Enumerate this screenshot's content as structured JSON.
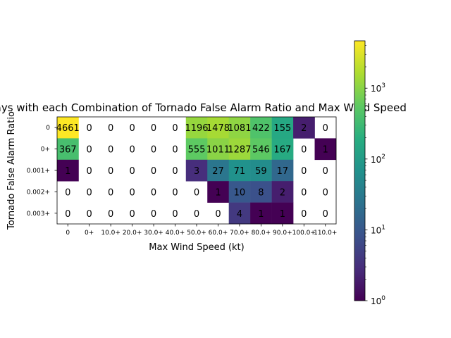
{
  "chart_data": {
    "type": "heatmap",
    "title": "Days with each Combination of Tornado False Alarm Ratio and Max Wind Speed",
    "xlabel": "Max Wind Speed (kt)",
    "ylabel": "Tornado False Alarm Ratio",
    "x_categories": [
      "0",
      "0+",
      "10.0+",
      "20.0+",
      "30.0+",
      "40.0+",
      "50.0+",
      "60.0+",
      "70.0+",
      "80.0+",
      "90.0+",
      "100.0+",
      "110.0+"
    ],
    "y_categories": [
      "0",
      "0+",
      "0.001+",
      "0.002+",
      "0.003+"
    ],
    "values": [
      [
        4661,
        0,
        0,
        0,
        0,
        0,
        1196,
        1478,
        1081,
        422,
        155,
        2,
        0
      ],
      [
        367,
        0,
        0,
        0,
        0,
        0,
        555,
        1011,
        1287,
        546,
        167,
        0,
        1
      ],
      [
        1,
        0,
        0,
        0,
        0,
        0,
        3,
        27,
        71,
        59,
        17,
        0,
        0
      ],
      [
        0,
        0,
        0,
        0,
        0,
        0,
        0,
        1,
        10,
        8,
        2,
        0,
        0
      ],
      [
        0,
        0,
        0,
        0,
        0,
        0,
        0,
        0,
        4,
        1,
        1,
        0,
        0
      ]
    ],
    "color_scale": "log",
    "colormap": "viridis",
    "zero_cells": "blank",
    "colorbar": {
      "range": [
        1,
        4661
      ],
      "ticks": [
        {
          "value": 1,
          "base": "10",
          "exp": "0"
        },
        {
          "value": 10,
          "base": "10",
          "exp": "1"
        },
        {
          "value": 100,
          "base": "10",
          "exp": "2"
        },
        {
          "value": 1000,
          "base": "10",
          "exp": "3"
        }
      ]
    }
  }
}
